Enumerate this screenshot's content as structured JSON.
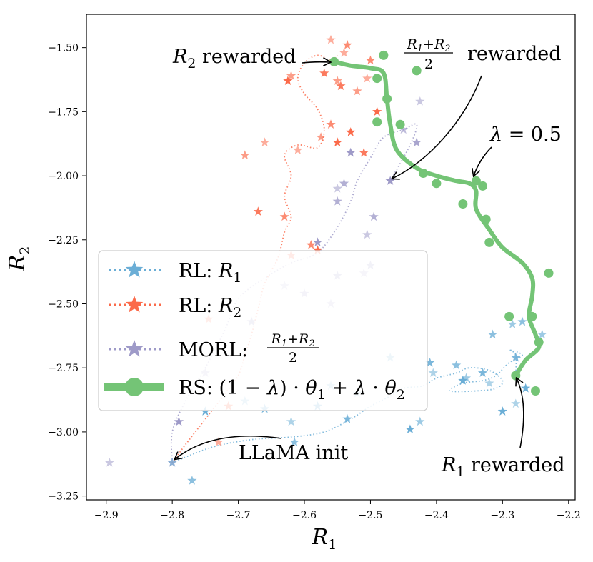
{
  "chart_data": {
    "type": "scatter",
    "xlabel": "R1",
    "ylabel": "R2",
    "xlim": [
      -2.93,
      -2.19
    ],
    "ylim": [
      -3.265,
      -1.37
    ],
    "xticks": [
      -2.9,
      -2.8,
      -2.7,
      -2.6,
      -2.5,
      -2.4,
      -2.3,
      -2.2
    ],
    "xtick_labels": [
      "−2.9",
      "−2.8",
      "−2.7",
      "−2.6",
      "−2.5",
      "−2.4",
      "−2.3",
      "−2.2"
    ],
    "yticks": [
      -1.5,
      -1.75,
      -2.0,
      -2.25,
      -2.5,
      -2.75,
      -3.0,
      -3.25
    ],
    "ytick_labels": [
      "−1.50",
      "−1.75",
      "−2.00",
      "−2.25",
      "−2.50",
      "−2.75",
      "−3.00",
      "−3.25"
    ],
    "colors": {
      "rl_r1": "#6baed6",
      "rl_r2": "#fb6a4a",
      "morl": "#9e9ac8",
      "rs": "#74c476"
    },
    "series": [
      {
        "name": "RL: R1",
        "color_key": "rl_r1",
        "marker": "star",
        "path": [
          [
            -2.8,
            -3.12
          ],
          [
            -2.74,
            -3.06
          ],
          [
            -2.68,
            -3.03
          ],
          [
            -2.62,
            -3.02
          ],
          [
            -2.57,
            -3.0
          ],
          [
            -2.53,
            -2.95
          ],
          [
            -2.5,
            -2.9
          ],
          [
            -2.47,
            -2.86
          ],
          [
            -2.45,
            -2.83
          ],
          [
            -2.42,
            -2.82
          ],
          [
            -2.4,
            -2.79
          ],
          [
            -2.37,
            -2.77
          ],
          [
            -2.35,
            -2.75
          ],
          [
            -2.32,
            -2.76
          ],
          [
            -2.3,
            -2.8
          ],
          [
            -2.31,
            -2.83
          ],
          [
            -2.34,
            -2.84
          ],
          [
            -2.38,
            -2.84
          ],
          [
            -2.36,
            -2.81
          ],
          [
            -2.33,
            -2.8
          ],
          [
            -2.31,
            -2.78
          ],
          [
            -2.29,
            -2.73
          ],
          [
            -2.27,
            -2.7
          ],
          [
            -2.29,
            -2.68
          ],
          [
            -2.28,
            -2.7
          ],
          [
            -2.28,
            -2.78
          ]
        ],
        "points": [
          [
            -2.8,
            -3.12
          ],
          [
            -2.77,
            -3.19
          ],
          [
            -2.75,
            -2.92
          ],
          [
            -2.69,
            -2.88
          ],
          [
            -2.66,
            -2.91
          ],
          [
            -2.62,
            -2.96
          ],
          [
            -2.615,
            -3.04
          ],
          [
            -2.58,
            -2.9
          ],
          [
            -2.56,
            -2.82
          ],
          [
            -2.535,
            -2.95
          ],
          [
            -2.52,
            -2.85
          ],
          [
            -2.47,
            -2.71
          ],
          [
            -2.44,
            -2.99
          ],
          [
            -2.425,
            -2.96
          ],
          [
            -2.41,
            -2.73
          ],
          [
            -2.405,
            -2.77
          ],
          [
            -2.37,
            -2.74
          ],
          [
            -2.36,
            -2.8
          ],
          [
            -2.355,
            -2.79
          ],
          [
            -2.33,
            -2.77
          ],
          [
            -2.32,
            -2.81
          ],
          [
            -2.315,
            -2.62
          ],
          [
            -2.3,
            -2.92
          ],
          [
            -2.285,
            -2.58
          ],
          [
            -2.28,
            -2.71
          ],
          [
            -2.28,
            -2.89
          ],
          [
            -2.27,
            -2.57
          ],
          [
            -2.265,
            -2.83
          ],
          [
            -2.24,
            -2.62
          ]
        ]
      },
      {
        "name": "RL: R2",
        "color_key": "rl_r2",
        "marker": "star",
        "path": [
          [
            -2.8,
            -3.12
          ],
          [
            -2.78,
            -3.05
          ],
          [
            -2.75,
            -2.95
          ],
          [
            -2.72,
            -2.85
          ],
          [
            -2.7,
            -2.78
          ],
          [
            -2.69,
            -2.7
          ],
          [
            -2.68,
            -2.62
          ],
          [
            -2.67,
            -2.52
          ],
          [
            -2.66,
            -2.42
          ],
          [
            -2.64,
            -2.32
          ],
          [
            -2.63,
            -2.22
          ],
          [
            -2.62,
            -2.16
          ],
          [
            -2.63,
            -2.08
          ],
          [
            -2.62,
            -2.0
          ],
          [
            -2.63,
            -1.92
          ],
          [
            -2.61,
            -1.88
          ],
          [
            -2.58,
            -1.89
          ],
          [
            -2.57,
            -1.82
          ],
          [
            -2.58,
            -1.74
          ],
          [
            -2.6,
            -1.68
          ],
          [
            -2.61,
            -1.62
          ],
          [
            -2.6,
            -1.56
          ],
          [
            -2.58,
            -1.53
          ],
          [
            -2.56,
            -1.55
          ],
          [
            -2.55,
            -1.53
          ]
        ],
        "points": [
          [
            -2.73,
            -3.04
          ],
          [
            -2.745,
            -2.56
          ],
          [
            -2.715,
            -2.9
          ],
          [
            -2.69,
            -1.92
          ],
          [
            -2.67,
            -2.14
          ],
          [
            -2.66,
            -1.87
          ],
          [
            -2.63,
            -2.16
          ],
          [
            -2.625,
            -1.63
          ],
          [
            -2.62,
            -1.61
          ],
          [
            -2.62,
            -2.31
          ],
          [
            -2.61,
            -1.9
          ],
          [
            -2.59,
            -2.27
          ],
          [
            -2.58,
            -2.29
          ],
          [
            -2.575,
            -1.85
          ],
          [
            -2.57,
            -1.6
          ],
          [
            -2.56,
            -1.47
          ],
          [
            -2.56,
            -1.8
          ],
          [
            -2.55,
            -1.87
          ],
          [
            -2.55,
            -1.63
          ],
          [
            -2.545,
            -1.65
          ],
          [
            -2.54,
            -1.52
          ],
          [
            -2.535,
            -1.49
          ],
          [
            -2.53,
            -1.83
          ],
          [
            -2.52,
            -1.67
          ],
          [
            -2.51,
            -1.91
          ],
          [
            -2.505,
            -1.62
          ],
          [
            -2.5,
            -1.55
          ],
          [
            -2.49,
            -1.75
          ]
        ]
      },
      {
        "name": "MORL: (R1+R2)/2",
        "color_key": "morl",
        "marker": "star",
        "path": [
          [
            -2.8,
            -3.12
          ],
          [
            -2.8,
            -3.0
          ],
          [
            -2.78,
            -2.88
          ],
          [
            -2.75,
            -2.75
          ],
          [
            -2.72,
            -2.6
          ],
          [
            -2.7,
            -2.48
          ],
          [
            -2.66,
            -2.4
          ],
          [
            -2.62,
            -2.34
          ],
          [
            -2.58,
            -2.3
          ],
          [
            -2.55,
            -2.2
          ],
          [
            -2.53,
            -2.1
          ],
          [
            -2.52,
            -2.02
          ],
          [
            -2.5,
            -1.93
          ],
          [
            -2.48,
            -1.85
          ],
          [
            -2.45,
            -1.82
          ],
          [
            -2.43,
            -1.8
          ],
          [
            -2.44,
            -1.88
          ],
          [
            -2.47,
            -2.02
          ]
        ],
        "points": [
          [
            -2.895,
            -3.12
          ],
          [
            -2.8,
            -3.12
          ],
          [
            -2.79,
            -2.96
          ],
          [
            -2.75,
            -2.77
          ],
          [
            -2.68,
            -2.57
          ],
          [
            -2.63,
            -2.43
          ],
          [
            -2.6,
            -2.46
          ],
          [
            -2.58,
            -2.26
          ],
          [
            -2.56,
            -2.5
          ],
          [
            -2.55,
            -2.39
          ],
          [
            -2.55,
            -2.05
          ],
          [
            -2.54,
            -2.03
          ],
          [
            -2.53,
            -1.91
          ],
          [
            -2.51,
            -2.38
          ],
          [
            -2.5,
            -2.35
          ],
          [
            -2.505,
            -2.23
          ],
          [
            -2.495,
            -2.16
          ],
          [
            -2.47,
            -2.02
          ],
          [
            -2.45,
            -1.82
          ],
          [
            -2.43,
            -1.87
          ],
          [
            -2.425,
            -1.71
          ],
          [
            -2.55,
            -2.1
          ]
        ]
      },
      {
        "name": "RS: (1−λ)·θ1 + λ·θ2",
        "color_key": "rs",
        "marker": "circle",
        "path": [
          [
            -2.555,
            -1.555
          ],
          [
            -2.53,
            -1.57
          ],
          [
            -2.5,
            -1.58
          ],
          [
            -2.48,
            -1.6
          ],
          [
            -2.475,
            -1.7
          ],
          [
            -2.47,
            -1.8
          ],
          [
            -2.46,
            -1.9
          ],
          [
            -2.43,
            -1.97
          ],
          [
            -2.4,
            -2.0
          ],
          [
            -2.37,
            -2.02
          ],
          [
            -2.35,
            -2.03
          ],
          [
            -2.34,
            -2.06
          ],
          [
            -2.34,
            -2.13
          ],
          [
            -2.32,
            -2.21
          ],
          [
            -2.3,
            -2.28
          ],
          [
            -2.27,
            -2.34
          ],
          [
            -2.255,
            -2.4
          ],
          [
            -2.255,
            -2.47
          ],
          [
            -2.26,
            -2.55
          ],
          [
            -2.25,
            -2.62
          ],
          [
            -2.245,
            -2.67
          ],
          [
            -2.265,
            -2.72
          ],
          [
            -2.28,
            -2.78
          ]
        ],
        "points": [
          [
            -2.555,
            -1.555
          ],
          [
            -2.49,
            -1.62
          ],
          [
            -2.48,
            -1.53
          ],
          [
            -2.475,
            -1.7
          ],
          [
            -2.455,
            -1.8
          ],
          [
            -2.49,
            -1.79
          ],
          [
            -2.43,
            -1.59
          ],
          [
            -2.42,
            -1.99
          ],
          [
            -2.4,
            -2.03
          ],
          [
            -2.36,
            -2.11
          ],
          [
            -2.34,
            -2.02
          ],
          [
            -2.33,
            -2.04
          ],
          [
            -2.325,
            -2.17
          ],
          [
            -2.32,
            -2.26
          ],
          [
            -2.29,
            -2.55
          ],
          [
            -2.255,
            -2.55
          ],
          [
            -2.245,
            -2.65
          ],
          [
            -2.23,
            -2.38
          ],
          [
            -2.25,
            -2.84
          ],
          [
            -2.28,
            -2.78
          ]
        ]
      }
    ],
    "legend": [
      {
        "prefix": "RL: ",
        "var": "R",
        "sub": "1"
      },
      {
        "prefix": "RL: ",
        "var": "R",
        "sub": "2"
      },
      {
        "prefix": "MORL: ",
        "frac_num": "R1+R2",
        "frac_den": "2"
      },
      {
        "prefix": "RS: ",
        "formula": "(1 − λ) · θ1 + λ · θ2"
      }
    ],
    "annotations": [
      {
        "id": "r2",
        "text_var": "R",
        "text_sub": "2",
        "text_rest": " rewarded",
        "target": [
          -2.555,
          -1.555
        ]
      },
      {
        "id": "mid",
        "frac_num": "R1+R2",
        "frac_den": "2",
        "text_rest": " rewarded",
        "target": [
          -2.47,
          -2.02
        ]
      },
      {
        "id": "lam",
        "text": "λ = 0.5",
        "target": [
          -2.34,
          -2.02
        ]
      },
      {
        "id": "r1",
        "text_var": "R",
        "text_sub": "1",
        "text_rest": " rewarded",
        "target": [
          -2.28,
          -2.78
        ]
      },
      {
        "id": "init",
        "text": "LLaMA init",
        "target": [
          -2.8,
          -3.12
        ]
      }
    ]
  }
}
